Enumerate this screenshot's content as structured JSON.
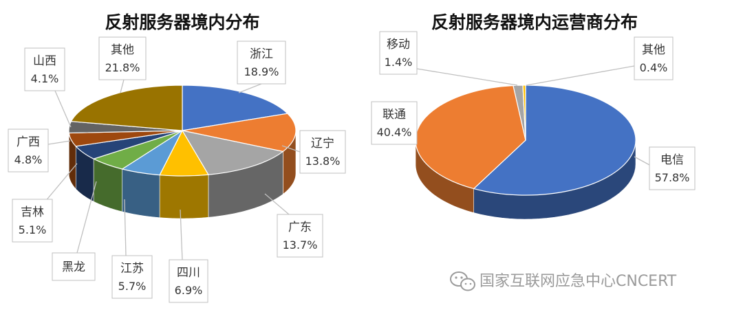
{
  "chart_data": [
    {
      "type": "pie",
      "title": "反射服务器境内分布",
      "slices": [
        {
          "name": "浙江",
          "value": 18.9,
          "label": "18.9%",
          "color": "#4472c4"
        },
        {
          "name": "辽宁",
          "value": 13.8,
          "label": "13.8%",
          "color": "#ed7d31"
        },
        {
          "name": "广东",
          "value": 13.7,
          "label": "13.7%",
          "color": "#a5a5a5"
        },
        {
          "name": "四川",
          "value": 6.9,
          "label": "6.9%",
          "color": "#ffc000"
        },
        {
          "name": "江苏",
          "value": 5.7,
          "label": "5.7%",
          "color": "#5b9bd5"
        },
        {
          "name": "黑龙",
          "value": 5.4,
          "label": "",
          "color": "#70ad47"
        },
        {
          "name": "吉林",
          "value": 5.1,
          "label": "5.1%",
          "color": "#264478"
        },
        {
          "name": "广西",
          "value": 4.8,
          "label": "4.8%",
          "color": "#9e480e"
        },
        {
          "name": "山西",
          "value": 4.1,
          "label": "4.1%",
          "color": "#636363"
        },
        {
          "name": "其他",
          "value": 21.8,
          "label": "21.8%",
          "color": "#997300"
        }
      ]
    },
    {
      "type": "pie",
      "title": "反射服务器境内运营商分布",
      "slices": [
        {
          "name": "电信",
          "value": 57.8,
          "label": "57.8%",
          "color": "#4472c4"
        },
        {
          "name": "联通",
          "value": 40.4,
          "label": "40.4%",
          "color": "#ed7d31"
        },
        {
          "name": "移动",
          "value": 1.4,
          "label": "1.4%",
          "color": "#a5a5a5"
        },
        {
          "name": "其他",
          "value": 0.4,
          "label": "0.4%",
          "color": "#ffc000"
        }
      ]
    }
  ],
  "watermark": {
    "text": "国家互联网应急中心CNCERT",
    "icon": "wechat-icon"
  }
}
